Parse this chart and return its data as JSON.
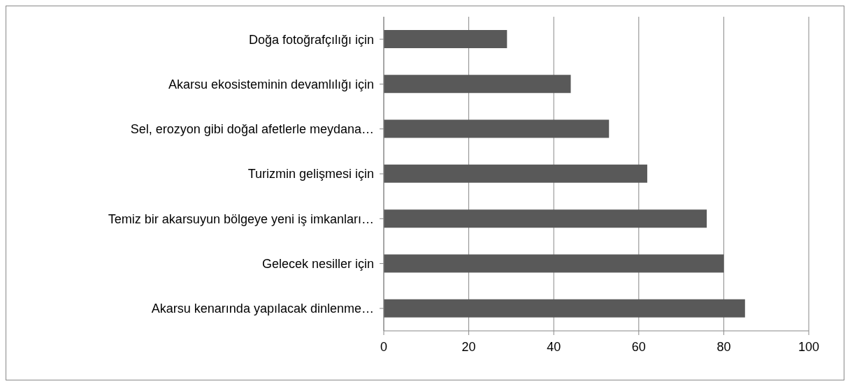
{
  "chart_data": {
    "type": "bar",
    "orientation": "horizontal",
    "categories": [
      "Doğa fotoğrafçılığı için",
      "Akarsu ekosisteminin devamlılığı için",
      "Sel, erozyon gibi doğal afetlerle meydana…",
      "Turizmin gelişmesi için",
      "Temiz bir akarsuyun bölgeye yeni iş imkanları…",
      "Gelecek nesiller için",
      "Akarsu kenarında yapılacak dinlenme…"
    ],
    "values": [
      29,
      44,
      53,
      62,
      76,
      80,
      85
    ],
    "color": "#595959",
    "xlim": [
      0,
      100
    ],
    "xticks": [
      0,
      20,
      40,
      60,
      80,
      100
    ],
    "grid": "x",
    "legend": false
  }
}
